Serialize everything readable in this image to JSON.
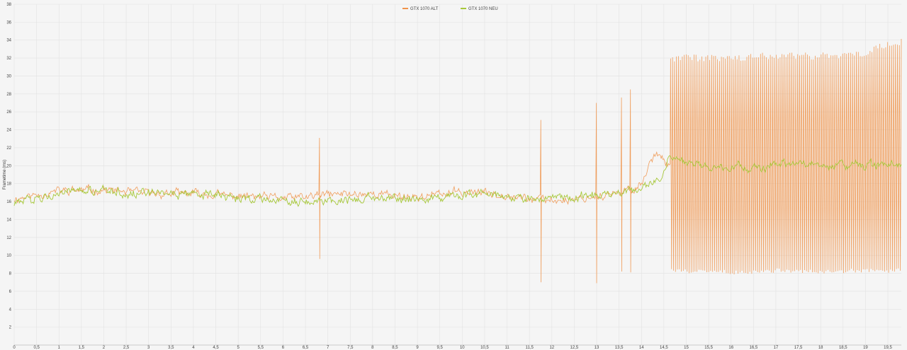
{
  "chart_data": {
    "type": "line",
    "ylabel": "Frametime (ms)",
    "xlim": [
      0,
      19.8
    ],
    "ylim": [
      0,
      38
    ],
    "grid": true,
    "legend_position": "top-center",
    "x_ticks": [
      "0",
      "0,5",
      "1",
      "1,5",
      "2",
      "2,5",
      "3",
      "3,5",
      "4",
      "4,5",
      "5",
      "5,5",
      "6",
      "6,5",
      "7",
      "7,5",
      "8",
      "8,5",
      "9",
      "9,5",
      "10",
      "10,5",
      "11",
      "11,5",
      "12",
      "12,5",
      "13",
      "13,5",
      "14",
      "14,5",
      "15",
      "15,5",
      "16",
      "16,5",
      "17",
      "17,5",
      "18",
      "18,5",
      "19",
      "19,5"
    ],
    "y_ticks": [
      "2",
      "4",
      "6",
      "8",
      "10",
      "12",
      "14",
      "16",
      "18",
      "20",
      "22",
      "24",
      "26",
      "28",
      "30",
      "32",
      "34",
      "36",
      "38"
    ],
    "series": [
      {
        "name": "GTX 1070 ALT",
        "color": "#f0934a",
        "base_points": [
          [
            0,
            16.3
          ],
          [
            1,
            17.2
          ],
          [
            2,
            17.3
          ],
          [
            3,
            16.9
          ],
          [
            4,
            16.9
          ],
          [
            5,
            16.6
          ],
          [
            6,
            16.4
          ],
          [
            6.5,
            16.5
          ],
          [
            7,
            16.8
          ],
          [
            8,
            16.9
          ],
          [
            9,
            16.5
          ],
          [
            10,
            17.1
          ],
          [
            11,
            16.8
          ],
          [
            11.5,
            16.3
          ],
          [
            12,
            16.1
          ],
          [
            12.5,
            16.3
          ],
          [
            13,
            16.6
          ],
          [
            13.5,
            16.8
          ],
          [
            14,
            17.9
          ],
          [
            14.2,
            20.5
          ],
          [
            14.4,
            21.5
          ],
          [
            14.6,
            20.2
          ],
          [
            15.5,
            20.0
          ],
          [
            16.5,
            20.1
          ],
          [
            17.5,
            20.0
          ],
          [
            18.5,
            20.0
          ],
          [
            19.8,
            20.0
          ]
        ],
        "noise_amp": 0.35,
        "spikes": [
          {
            "x": 6.82,
            "high": 23.1,
            "low": 9.6
          },
          {
            "x": 11.75,
            "high": 25.1,
            "low": 7.0
          },
          {
            "x": 13.0,
            "high": 27.0,
            "low": 6.9
          },
          {
            "x": 13.55,
            "high": 27.6,
            "low": 8.2
          },
          {
            "x": 13.75,
            "high": 28.5,
            "low": 8.1
          }
        ],
        "oscillation": {
          "start": 14.65,
          "end": 19.8,
          "count": 118,
          "high": [
            [
              14.65,
              32.0
            ],
            [
              16.0,
              32.0
            ],
            [
              17.0,
              32.3
            ],
            [
              18.0,
              32.2
            ],
            [
              18.9,
              32.5
            ],
            [
              19.3,
              33.2
            ],
            [
              19.8,
              33.8
            ]
          ],
          "low": [
            [
              14.65,
              8.3
            ],
            [
              16.0,
              8.1
            ],
            [
              17.0,
              8.3
            ],
            [
              18.0,
              8.2
            ],
            [
              19.0,
              8.3
            ],
            [
              19.8,
              8.3
            ]
          ]
        }
      },
      {
        "name": "GTX 1070 NEU",
        "color": "#a7c83a",
        "base_points": [
          [
            0,
            15.8
          ],
          [
            1,
            17.0
          ],
          [
            2,
            17.2
          ],
          [
            3,
            16.8
          ],
          [
            4,
            16.9
          ],
          [
            5,
            16.4
          ],
          [
            6,
            16.2
          ],
          [
            6.5,
            16.0
          ],
          [
            7,
            16.1
          ],
          [
            7.5,
            16.2
          ],
          [
            8,
            16.5
          ],
          [
            9,
            16.3
          ],
          [
            10,
            16.7
          ],
          [
            11,
            16.6
          ],
          [
            11.5,
            16.2
          ],
          [
            12,
            16.3
          ],
          [
            12.5,
            16.5
          ],
          [
            13,
            16.7
          ],
          [
            13.5,
            17.0
          ],
          [
            14,
            17.5
          ],
          [
            14.3,
            18.3
          ],
          [
            14.5,
            19.3
          ],
          [
            14.6,
            20.8
          ],
          [
            14.75,
            20.6
          ],
          [
            15.0,
            20.3
          ],
          [
            15.5,
            19.8
          ],
          [
            16.0,
            19.9
          ],
          [
            16.5,
            19.7
          ],
          [
            17.0,
            20.0
          ],
          [
            17.5,
            20.2
          ],
          [
            18.0,
            20.0
          ],
          [
            19.0,
            20.0
          ],
          [
            19.8,
            20.0
          ]
        ],
        "noise_amp": 0.35
      }
    ]
  }
}
